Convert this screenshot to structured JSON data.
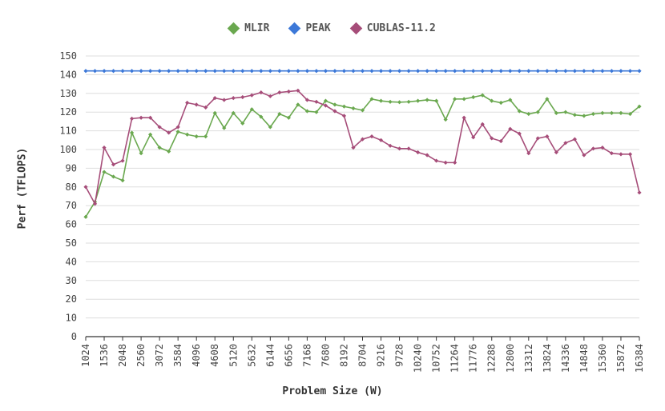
{
  "chart_data": {
    "type": "line",
    "title": "",
    "xlabel": "Problem Size (W)",
    "ylabel": "Perf (TFLOPS)",
    "ylim": [
      0,
      150
    ],
    "yticks": [
      0,
      10,
      20,
      30,
      40,
      50,
      60,
      70,
      80,
      90,
      100,
      110,
      120,
      130,
      140,
      150
    ],
    "grid": true,
    "legend_position": "top-center",
    "x": [
      1024,
      1280,
      1536,
      1792,
      2048,
      2304,
      2560,
      2816,
      3072,
      3328,
      3584,
      3840,
      4096,
      4352,
      4608,
      4864,
      5120,
      5376,
      5632,
      5888,
      6144,
      6400,
      6656,
      6912,
      7168,
      7424,
      7680,
      7936,
      8192,
      8448,
      8704,
      8960,
      9216,
      9472,
      9728,
      9984,
      10240,
      10496,
      10752,
      11008,
      11264,
      11520,
      11776,
      12032,
      12288,
      12544,
      12800,
      13056,
      13312,
      13568,
      13824,
      14080,
      14336,
      14592,
      14848,
      15104,
      15360,
      15616,
      15872,
      16128,
      16384
    ],
    "x_tick_labels": [
      "1024",
      "1536",
      "2048",
      "2560",
      "3072",
      "3584",
      "4096",
      "4608",
      "5120",
      "5632",
      "6144",
      "6656",
      "7168",
      "7680",
      "8192",
      "8704",
      "9216",
      "9728",
      "10240",
      "10752",
      "11264",
      "11776",
      "12288",
      "12800",
      "13312",
      "13824",
      "14336",
      "14848",
      "15360",
      "15872",
      "16384"
    ],
    "series": [
      {
        "name": "MLIR",
        "color": "#6aa84f",
        "values": [
          64,
          72,
          88,
          85.5,
          83.5,
          109,
          98,
          108,
          101,
          99,
          109.5,
          108,
          107,
          107,
          119.5,
          111.5,
          119.5,
          114,
          121.5,
          117.5,
          112,
          119,
          117,
          124,
          120.5,
          120,
          126,
          124,
          123,
          122,
          121,
          127,
          126,
          125.5,
          125.3,
          125.5,
          126,
          126.5,
          126,
          116,
          127,
          127,
          128,
          129,
          126,
          125,
          126.5,
          120.5,
          119,
          120,
          127,
          119.5,
          120,
          118.5,
          118,
          119,
          119.5,
          119.5,
          119.5,
          119,
          123
        ]
      },
      {
        "name": "PEAK",
        "color": "#3c78d8",
        "values": [
          142,
          142,
          142,
          142,
          142,
          142,
          142,
          142,
          142,
          142,
          142,
          142,
          142,
          142,
          142,
          142,
          142,
          142,
          142,
          142,
          142,
          142,
          142,
          142,
          142,
          142,
          142,
          142,
          142,
          142,
          142,
          142,
          142,
          142,
          142,
          142,
          142,
          142,
          142,
          142,
          142,
          142,
          142,
          142,
          142,
          142,
          142,
          142,
          142,
          142,
          142,
          142,
          142,
          142,
          142,
          142,
          142,
          142,
          142,
          142,
          142
        ]
      },
      {
        "name": "CUBLAS-11.2",
        "color": "#a64d79",
        "values": [
          80,
          71,
          101,
          92,
          94,
          116.5,
          117,
          117,
          112,
          109,
          112,
          125,
          124,
          122.5,
          127.5,
          126.5,
          127.5,
          128,
          129,
          130.5,
          128.5,
          130.5,
          131,
          131.5,
          126.5,
          125.5,
          123.5,
          120.5,
          118,
          101,
          105.5,
          107,
          105,
          102,
          100.5,
          100.5,
          98.5,
          97,
          94,
          93,
          93,
          117,
          106.5,
          113.5,
          106,
          104.5,
          111,
          108.5,
          98,
          106,
          107,
          98.5,
          103.5,
          105.5,
          97,
          100.5,
          101,
          98,
          97.5,
          97.5,
          77
        ]
      }
    ]
  }
}
